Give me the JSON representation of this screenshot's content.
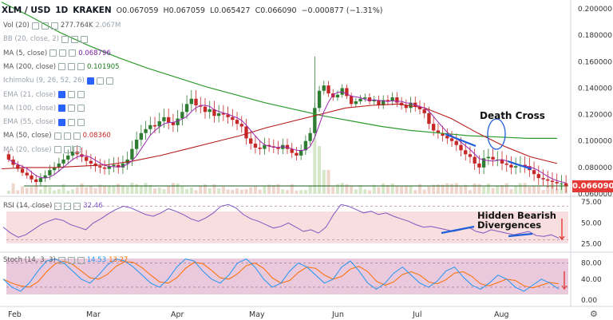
{
  "header": {
    "symbol": "XLM / USD",
    "interval": "1D",
    "exchange": "KRAKEN",
    "open": "O0.067059",
    "high": "H0.067059",
    "low": "L0.065427",
    "close": "C0.066090",
    "change": "−0.000877 (−1.31%)"
  },
  "indicators": [
    {
      "name": "Vol (20)",
      "value": "277.764K",
      "value2": "2.067M",
      "color": "#555555",
      "dim": false
    },
    {
      "name": "BB (20, close, 2)",
      "value": "",
      "color": "#9aa3ad",
      "dim": true
    },
    {
      "name": "MA (5, close)",
      "value": "0.068796",
      "color": "#7b1fa2",
      "dim": false
    },
    {
      "name": "MA (200, close)",
      "value": "0.101905",
      "color": "#1b7a1b",
      "dim": false
    },
    {
      "name": "Ichimoku (9, 26, 52, 26)",
      "value": "",
      "color": "#9aa3ad",
      "dim": true
    },
    {
      "name": "EMA (21, close)",
      "value": "",
      "color": "#9aa3ad",
      "dim": true
    },
    {
      "name": "MA (100, close)",
      "value": "",
      "color": "#9aa3ad",
      "dim": true
    },
    {
      "name": "EMA (55, close)",
      "value": "",
      "color": "#9aa3ad",
      "dim": true
    },
    {
      "name": "MA (50, close)",
      "value": "0.08360",
      "color": "#c62828",
      "dim": false
    },
    {
      "name": "MA (20, close)",
      "value": "",
      "color": "#9aa3ad",
      "dim": true
    }
  ],
  "price_axis": [
    "0.200000",
    "0.180000",
    "0.160000",
    "0.140000",
    "0.120000",
    "0.100000",
    "0.080000",
    "0.060000"
  ],
  "last_price_label": "0.066090",
  "rsi": {
    "label": "RSI (14, close)",
    "value": "32.46",
    "ticks": [
      "75.00",
      "50.00",
      "25.00"
    ]
  },
  "stoch": {
    "label": "Stoch (14, 3, 3)",
    "k": "14.53",
    "d": "13.27",
    "ticks": [
      "80.00",
      "40.00",
      "0.00"
    ]
  },
  "time_axis": [
    "Feb",
    "Mar",
    "Apr",
    "May",
    "Jun",
    "Jul",
    "Aug"
  ],
  "annotations": {
    "death_cross": "Death Cross",
    "hidden_bearish": "Hidden Bearish\nDivergences"
  },
  "colors": {
    "up": "#2e7d32",
    "down": "#c62828",
    "ma200": "#2e9b2e",
    "ma50": "#b71c1c",
    "ma5": "#9c27b0",
    "rsi": "#7e57c2",
    "stoch_k": "#2196f3",
    "stoch_d": "#ff6d00",
    "annot": "#1e5fd8"
  },
  "chart_data": {
    "type": "candlestick",
    "title": "XLM / USD 1D KRAKEN",
    "ylim": [
      0.06,
      0.2
    ],
    "close_series": [
      0.086,
      0.082,
      0.079,
      0.076,
      0.074,
      0.071,
      0.069,
      0.072,
      0.074,
      0.078,
      0.08,
      0.083,
      0.086,
      0.089,
      0.092,
      0.09,
      0.088,
      0.085,
      0.083,
      0.081,
      0.08,
      0.079,
      0.081,
      0.082,
      0.08,
      0.083,
      0.086,
      0.094,
      0.101,
      0.106,
      0.109,
      0.112,
      0.111,
      0.115,
      0.118,
      0.114,
      0.112,
      0.117,
      0.122,
      0.128,
      0.132,
      0.127,
      0.126,
      0.122,
      0.124,
      0.119,
      0.121,
      0.12,
      0.118,
      0.116,
      0.113,
      0.111,
      0.102,
      0.098,
      0.095,
      0.094,
      0.097,
      0.096,
      0.095,
      0.094,
      0.097,
      0.094,
      0.091,
      0.089,
      0.093,
      0.1,
      0.106,
      0.125,
      0.138,
      0.142,
      0.136,
      0.133,
      0.135,
      0.14,
      0.134,
      0.128,
      0.13,
      0.132,
      0.133,
      0.13,
      0.131,
      0.127,
      0.131,
      0.13,
      0.133,
      0.129,
      0.127,
      0.125,
      0.129,
      0.126,
      0.124,
      0.121,
      0.113,
      0.108,
      0.106,
      0.104,
      0.102,
      0.1,
      0.097,
      0.093,
      0.09,
      0.088,
      0.083,
      0.08,
      0.087,
      0.088,
      0.086,
      0.086,
      0.083,
      0.082,
      0.08,
      0.081,
      0.082,
      0.081,
      0.078,
      0.075,
      0.072,
      0.071,
      0.07,
      0.069,
      0.068,
      0.068,
      0.066
    ],
    "ma200_series": [
      0.205,
      0.194,
      0.182,
      0.172,
      0.163,
      0.155,
      0.148,
      0.141,
      0.135,
      0.129,
      0.124,
      0.119,
      0.115,
      0.111,
      0.108,
      0.106,
      0.104,
      0.103,
      0.102,
      0.102
    ],
    "ma50_series": [
      0.079,
      0.08,
      0.08,
      0.081,
      0.082,
      0.085,
      0.089,
      0.094,
      0.099,
      0.104,
      0.11,
      0.115,
      0.12,
      0.125,
      0.127,
      0.128,
      0.125,
      0.117,
      0.106,
      0.096,
      0.088,
      0.083
    ],
    "rsi_series": [
      45,
      38,
      33,
      36,
      42,
      48,
      52,
      55,
      53,
      48,
      45,
      42,
      50,
      55,
      61,
      66,
      70,
      68,
      64,
      60,
      58,
      62,
      67,
      64,
      60,
      55,
      52,
      56,
      62,
      70,
      72,
      68,
      60,
      55,
      52,
      48,
      44,
      46,
      50,
      45,
      40,
      42,
      38,
      45,
      60,
      72,
      70,
      66,
      62,
      64,
      60,
      62,
      58,
      55,
      52,
      48,
      45,
      46,
      44,
      42,
      40,
      42,
      45,
      40,
      38,
      42,
      40,
      38,
      36,
      38,
      40,
      35,
      34,
      36,
      32
    ],
    "stoch_k_series": [
      40,
      20,
      10,
      30,
      60,
      85,
      90,
      80,
      60,
      40,
      30,
      50,
      75,
      90,
      85,
      70,
      50,
      30,
      20,
      40,
      70,
      90,
      85,
      60,
      40,
      30,
      50,
      80,
      90,
      70,
      40,
      20,
      30,
      60,
      80,
      70,
      50,
      30,
      40,
      70,
      85,
      60,
      30,
      15,
      30,
      55,
      70,
      50,
      30,
      20,
      35,
      60,
      70,
      45,
      25,
      15,
      30,
      50,
      40,
      20,
      10,
      25,
      40,
      30,
      15
    ]
  }
}
